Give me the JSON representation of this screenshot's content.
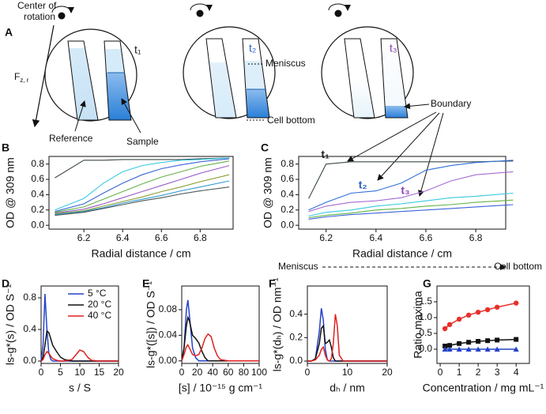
{
  "diagram": {
    "label": "A",
    "rotation": [
      "Center of",
      "rotation"
    ],
    "force": "F",
    "force_sub": "z, r",
    "times": [
      {
        "text": "t₁",
        "color": "#222222"
      },
      {
        "text": "t₂",
        "color": "#2f5fc4"
      },
      {
        "text": "t₃",
        "color": "#8a3fb0"
      }
    ],
    "meniscus": "Meniscus",
    "cell_bottom": "Cell bottom",
    "reference": "Reference",
    "sample": "Sample",
    "boundary": "Boundary"
  },
  "chart_data": [
    {
      "type": "line",
      "label": "B",
      "x_label": "Radial distance / cm",
      "y_label": "OD @ 309 nm",
      "x": [
        6.05,
        6.2,
        6.3,
        6.4,
        6.5,
        6.6,
        6.7,
        6.8,
        6.95
      ],
      "series": [
        {
          "color": "#3d4a4a",
          "values": [
            0.62,
            0.85,
            0.85,
            0.86,
            0.86,
            0.86,
            0.86,
            0.87,
            0.88
          ]
        },
        {
          "color": "#39c9e0",
          "values": [
            0.2,
            0.35,
            0.55,
            0.7,
            0.78,
            0.82,
            0.85,
            0.86,
            0.88
          ]
        },
        {
          "color": "#3a63d8",
          "values": [
            0.18,
            0.28,
            0.42,
            0.55,
            0.66,
            0.74,
            0.79,
            0.83,
            0.87
          ]
        },
        {
          "color": "#63b247",
          "values": [
            0.17,
            0.24,
            0.34,
            0.44,
            0.54,
            0.63,
            0.7,
            0.77,
            0.84
          ]
        },
        {
          "color": "#9a5cc9",
          "values": [
            0.16,
            0.21,
            0.28,
            0.36,
            0.44,
            0.52,
            0.6,
            0.68,
            0.78
          ]
        },
        {
          "color": "#8aa030",
          "values": [
            0.15,
            0.19,
            0.25,
            0.31,
            0.37,
            0.44,
            0.5,
            0.57,
            0.66
          ]
        },
        {
          "color": "#2f9ad0",
          "values": [
            0.14,
            0.18,
            0.23,
            0.29,
            0.34,
            0.39,
            0.45,
            0.5,
            0.58
          ]
        },
        {
          "color": "#4a5656",
          "values": [
            0.13,
            0.17,
            0.22,
            0.27,
            0.32,
            0.36,
            0.41,
            0.45,
            0.5
          ]
        }
      ],
      "xlim": [
        6.02,
        6.97
      ],
      "ylim": [
        -0.05,
        0.9
      ],
      "xticks": [
        6.2,
        6.4,
        6.6,
        6.8
      ],
      "yticks": [
        {
          "value": 0,
          "label": "0.0"
        },
        0.2,
        0.4,
        0.6,
        0.8
      ]
    },
    {
      "type": "line",
      "label": "C",
      "x_label": "Radial distance / cm",
      "y_label": "OD @ 309 nm",
      "x": [
        6.13,
        6.2,
        6.3,
        6.4,
        6.5,
        6.6,
        6.7,
        6.8,
        6.95
      ],
      "series": [
        {
          "color": "#3d4a4a",
          "values": [
            0.35,
            0.8,
            0.83,
            0.83,
            0.83,
            0.83,
            0.83,
            0.83,
            0.84
          ]
        },
        {
          "color": "#2f6fd8",
          "values": [
            0.2,
            0.3,
            0.42,
            0.45,
            0.55,
            0.72,
            0.78,
            0.82,
            0.85
          ]
        },
        {
          "color": "#a56ad2",
          "values": [
            0.18,
            0.25,
            0.3,
            0.32,
            0.36,
            0.45,
            0.58,
            0.66,
            0.7
          ]
        },
        {
          "color": "#39c9e0",
          "values": [
            0.12,
            0.17,
            0.2,
            0.25,
            0.28,
            0.32,
            0.36,
            0.38,
            0.42
          ]
        },
        {
          "color": "#63b247",
          "values": [
            0.1,
            0.13,
            0.16,
            0.2,
            0.22,
            0.25,
            0.27,
            0.3,
            0.33
          ]
        },
        {
          "color": "#3a63d8",
          "values": [
            0.08,
            0.11,
            0.14,
            0.16,
            0.18,
            0.2,
            0.22,
            0.24,
            0.27
          ]
        }
      ],
      "annotations": [
        {
          "text": "t₁",
          "color": "#222222"
        },
        {
          "text": "t₂",
          "color": "#2f5fc4"
        },
        {
          "text": "t₃",
          "color": "#8a3fb0"
        }
      ],
      "range_labels": [
        "Meniscus",
        "Cell bottom"
      ],
      "xlim": [
        6.09,
        6.92
      ],
      "ylim": [
        -0.05,
        0.9
      ],
      "xticks": [
        6.2,
        6.4,
        6.6,
        6.8
      ],
      "yticks": [
        {
          "value": 0,
          "label": "0.0"
        },
        0.2,
        0.4,
        0.6,
        0.8
      ]
    },
    {
      "type": "line",
      "label": "D",
      "x_label": "s / S",
      "y_label": "ls-g*(s) / OD S⁻¹",
      "legend": "upper right",
      "x": [
        0,
        0.5,
        1,
        1.5,
        2,
        2.5,
        3,
        4,
        5,
        6,
        8,
        9,
        10,
        11,
        12,
        13,
        15,
        20
      ],
      "series": [
        {
          "name": "5 °C",
          "color": "#2443c8",
          "values": [
            0,
            0.2,
            0.85,
            0.4,
            0.1,
            0.02,
            0,
            0,
            0,
            0,
            0,
            0,
            0,
            0,
            0,
            0,
            0,
            0
          ]
        },
        {
          "name": "20 °C",
          "color": "#111111",
          "values": [
            0,
            0.05,
            0.2,
            0.38,
            0.36,
            0.28,
            0.2,
            0.12,
            0.05,
            0.02,
            0,
            0,
            0,
            0,
            0,
            0,
            0,
            0
          ]
        },
        {
          "name": "40 °C",
          "color": "#e02020",
          "values": [
            0,
            0.02,
            0.08,
            0.12,
            0.1,
            0.06,
            0.03,
            0.01,
            0,
            0,
            0.02,
            0.08,
            0.14,
            0.12,
            0.05,
            0.01,
            0,
            0
          ]
        }
      ],
      "xlim": [
        0,
        20
      ],
      "ylim": [
        -0.03,
        0.95
      ],
      "xticks": [
        0,
        5,
        10,
        15,
        20
      ],
      "yticks": [
        {
          "value": 0,
          "label": "0.0"
        },
        0.4,
        0.8
      ]
    },
    {
      "type": "line",
      "label": "E",
      "x_label": "[s] / 10⁻¹⁵ g cm⁻¹",
      "y_label": "ls-g*([s]) / OD S⁻¹",
      "x": [
        0,
        3,
        6,
        8,
        10,
        14,
        18,
        22,
        26,
        30,
        34,
        38,
        42,
        46,
        50,
        60,
        100
      ],
      "series": [
        {
          "color": "#2443c8",
          "values": [
            0,
            0.02,
            0.08,
            0.095,
            0.07,
            0.02,
            0.005,
            0,
            0,
            0,
            0,
            0,
            0,
            0,
            0,
            0,
            0
          ]
        },
        {
          "color": "#111111",
          "values": [
            0,
            0.02,
            0.055,
            0.068,
            0.062,
            0.04,
            0.035,
            0.028,
            0.015,
            0.005,
            0,
            0,
            0,
            0,
            0,
            0,
            0
          ]
        },
        {
          "color": "#e02020",
          "values": [
            0,
            0.01,
            0.022,
            0.025,
            0.02,
            0.01,
            0.008,
            0.01,
            0.02,
            0.035,
            0.042,
            0.038,
            0.02,
            0.008,
            0.002,
            0,
            0
          ]
        }
      ],
      "xlim": [
        0,
        100
      ],
      "ylim": [
        -0.004,
        0.117
      ],
      "xticks": [
        0,
        20,
        40,
        60,
        80,
        100
      ],
      "yticks": [
        {
          "value": 0,
          "label": "0.00"
        },
        {
          "value": 0.04,
          "label": "0.04"
        },
        {
          "value": 0.08,
          "label": "0.08"
        }
      ]
    },
    {
      "type": "line",
      "label": "F",
      "x_label": "dₕ / nm",
      "y_label": "ls-g*(dₕ) / OD nm⁻¹",
      "x": [
        0,
        1,
        2,
        3,
        3.5,
        4,
        4.5,
        5,
        5.5,
        6,
        6.5,
        7,
        7.5,
        8,
        9,
        20
      ],
      "series": [
        {
          "color": "#2443c8",
          "values": [
            0,
            0,
            0.02,
            0.25,
            0.45,
            0.35,
            0.1,
            0.01,
            0,
            0,
            0,
            0,
            0,
            0,
            0,
            0
          ]
        },
        {
          "color": "#111111",
          "values": [
            0,
            0,
            0.02,
            0.15,
            0.28,
            0.3,
            0.15,
            0.16,
            0.18,
            0.12,
            0.03,
            0,
            0,
            0,
            0,
            0
          ]
        },
        {
          "color": "#e02020",
          "values": [
            0,
            0,
            0.01,
            0.05,
            0.1,
            0.12,
            0.05,
            0.01,
            0,
            0.02,
            0.15,
            0.4,
            0.3,
            0.05,
            0,
            0
          ]
        }
      ],
      "xlim": [
        0,
        20
      ],
      "ylim": [
        -0.02,
        0.64
      ],
      "xticks": [
        0,
        10,
        20
      ],
      "yticks": [
        {
          "value": 0,
          "label": "0.0"
        },
        0.2,
        0.4
      ]
    },
    {
      "type": "line",
      "label": "G",
      "x_label": "Concentration / mg mL⁻¹",
      "y_label": "Ratio maxima",
      "x": [
        0.25,
        0.5,
        1,
        1.5,
        2,
        2.5,
        3,
        4
      ],
      "series": [
        {
          "color": "#e8302a",
          "marker": "circle",
          "values": [
            0.65,
            0.78,
            0.95,
            1.08,
            1.17,
            1.25,
            1.33,
            1.46
          ]
        },
        {
          "color": "#111111",
          "marker": "square",
          "values": [
            0.1,
            0.12,
            0.18,
            0.22,
            0.25,
            0.27,
            0.29,
            0.31
          ]
        },
        {
          "color": "#2443c8",
          "marker": "triangle",
          "values": [
            0,
            0,
            0,
            0,
            0,
            0,
            0,
            0
          ]
        }
      ],
      "xlim": [
        -0.17,
        4.7
      ],
      "ylim": [
        -0.45,
        2.0
      ],
      "xticks": [
        0,
        1,
        2,
        3,
        4
      ],
      "yticks": [
        {
          "value": 0,
          "label": "0.0"
        },
        0.5,
        {
          "value": 1,
          "label": "1.0"
        },
        1.5
      ]
    }
  ]
}
